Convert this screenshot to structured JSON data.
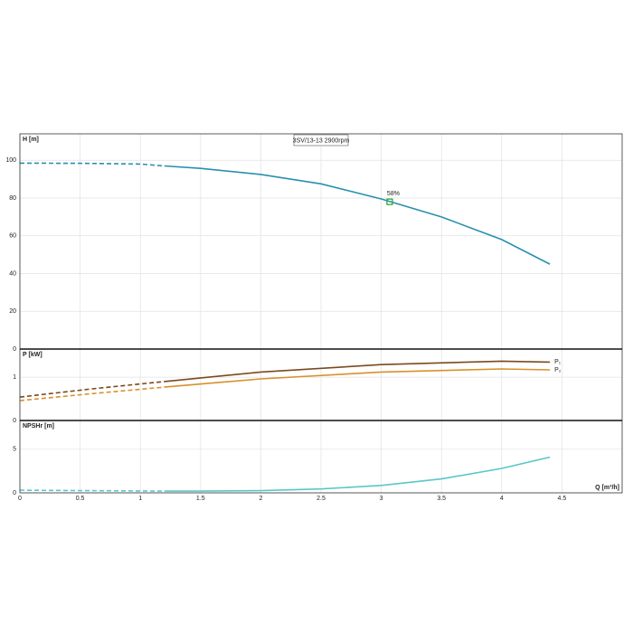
{
  "chart_data": [
    {
      "type": "line",
      "title": "3SV/13-13 2900rpm",
      "ylabel": "H [m]",
      "xlim": [
        0,
        5
      ],
      "ylim": [
        0,
        114
      ],
      "yticks": [
        0,
        20,
        40,
        60,
        80,
        100
      ],
      "grid": true,
      "annotation": {
        "text": "58%",
        "x": 3.07,
        "y": 78,
        "color": "#2eaa3c"
      },
      "series": [
        {
          "color": "#2a8fb0",
          "dashed": true,
          "x": [
            0,
            0.5,
            1,
            1.2
          ],
          "values": [
            98.5,
            98.4,
            98,
            97
          ]
        },
        {
          "color": "#2a8fb0",
          "dashed": false,
          "x": [
            1.2,
            1.5,
            2,
            2.5,
            3,
            3.5,
            4,
            4.4
          ],
          "values": [
            97,
            95.7,
            92.5,
            87.5,
            79.5,
            70,
            58,
            45
          ]
        }
      ]
    },
    {
      "type": "line",
      "ylabel": "P [kW]",
      "xlim": [
        0,
        5
      ],
      "ylim": [
        0,
        1.65
      ],
      "yticks": [
        0,
        1
      ],
      "grid": true,
      "series": [
        {
          "color": "#7a4a1e",
          "dashed": true,
          "x": [
            0,
            0.6,
            1.2
          ],
          "values": [
            0.54,
            0.73,
            0.9
          ]
        },
        {
          "name": "P₁",
          "color": "#7a4a1e",
          "dashed": false,
          "x": [
            1.2,
            2,
            3,
            4,
            4.4
          ],
          "values": [
            0.9,
            1.12,
            1.29,
            1.37,
            1.35
          ]
        },
        {
          "color": "#d9902a",
          "dashed": true,
          "x": [
            0,
            0.6,
            1.2
          ],
          "values": [
            0.46,
            0.62,
            0.77
          ]
        },
        {
          "name": "P₂",
          "color": "#d9902a",
          "dashed": false,
          "x": [
            1.2,
            2,
            3,
            4,
            4.4
          ],
          "values": [
            0.77,
            0.96,
            1.12,
            1.19,
            1.17
          ]
        }
      ]
    },
    {
      "type": "line",
      "ylabel": "NPSHr [m]",
      "xlabel": "Q [m³/h]",
      "xlim": [
        0,
        5
      ],
      "xticks": [
        0,
        0.5,
        1,
        1.5,
        2,
        2.5,
        3,
        3.5,
        4,
        4.5
      ],
      "ylim": [
        0,
        8.3
      ],
      "yticks": [
        0,
        5
      ],
      "grid": true,
      "series": [
        {
          "color": "#5cc6c8",
          "dashed": true,
          "x": [
            0,
            0.6,
            1.2
          ],
          "values": [
            0.3,
            0.25,
            0.2
          ]
        },
        {
          "color": "#5cc6c8",
          "dashed": false,
          "x": [
            1.2,
            1.5,
            2,
            2.5,
            3,
            3.5,
            4,
            4.4
          ],
          "values": [
            0.2,
            0.2,
            0.25,
            0.45,
            0.85,
            1.6,
            2.8,
            4.1
          ]
        }
      ]
    }
  ]
}
